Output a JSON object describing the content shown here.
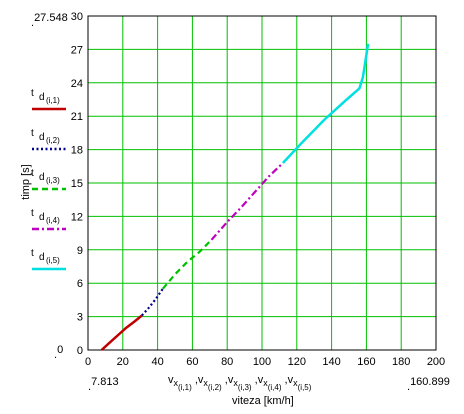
{
  "chart_data": {
    "type": "line",
    "xlabel": "viteza [km/h]",
    "ylabel": "timp [s]",
    "x_ticks": [
      "0",
      "20",
      "40",
      "60",
      "80",
      "100",
      "120",
      "140",
      "160",
      "180",
      "200"
    ],
    "y_ticks": [
      "0",
      "3",
      "6",
      "9",
      "12",
      "15",
      "18",
      "21",
      "24",
      "27",
      "30"
    ],
    "xlim": [
      0,
      200
    ],
    "ylim": [
      0,
      30
    ],
    "grid": true,
    "grid_color": "#00c000",
    "corner_labels": {
      "y_max": "27.548",
      "y_min": "0",
      "x_min": "7.813",
      "x_max": "160.899"
    },
    "x_series_label_parts": [
      {
        "base": "v",
        "sub1": "x",
        "sub2": "(i,1)",
        "sep": " ,"
      },
      {
        "base": "v",
        "sub1": "x",
        "sub2": "(i,2)",
        "sep": " ,"
      },
      {
        "base": "v",
        "sub1": "x",
        "sub2": "(i,3)",
        "sep": " ,"
      },
      {
        "base": "v",
        "sub1": "x",
        "sub2": "(i,4)",
        "sep": " ,"
      },
      {
        "base": "v",
        "sub1": "x",
        "sub2": "(i,5)",
        "sep": ""
      }
    ],
    "legend_placement": "left",
    "series": [
      {
        "name": "t d(i,1)",
        "legend_base": "t",
        "legend_sub1": "d",
        "legend_sub2": "(i,1)",
        "color": "#c00000",
        "dash": "solid",
        "x": [
          7.8,
          12,
          17,
          22,
          27,
          31
        ],
        "y": [
          0,
          0.6,
          1.3,
          2.0,
          2.6,
          3.1
        ]
      },
      {
        "name": "t d(i,2)",
        "legend_base": "t",
        "legend_sub1": "d",
        "legend_sub2": "(i,2)",
        "color": "#000090",
        "dash": "dot",
        "x": [
          31,
          35,
          39,
          43
        ],
        "y": [
          3.1,
          3.8,
          4.6,
          5.5
        ]
      },
      {
        "name": "t d(i,3)",
        "legend_base": "t",
        "legend_sub1": "d",
        "legend_sub2": "(i,3)",
        "color": "#00c000",
        "dash": "dash",
        "x": [
          43,
          50,
          57,
          64,
          71
        ],
        "y": [
          5.5,
          6.8,
          7.9,
          8.8,
          9.9
        ]
      },
      {
        "name": "t d(i,4)",
        "legend_base": "t",
        "legend_sub1": "d",
        "legend_sub2": "(i,4)",
        "color": "#c000c0",
        "dash": "dashdot",
        "x": [
          71,
          80,
          88,
          96,
          104,
          112
        ],
        "y": [
          9.9,
          11.5,
          12.8,
          14.2,
          15.6,
          16.8
        ]
      },
      {
        "name": "t d(i,5)",
        "legend_base": "t",
        "legend_sub1": "d",
        "legend_sub2": "(i,5)",
        "color": "#00e0e0",
        "dash": "solid",
        "x": [
          112,
          124,
          136,
          148,
          156,
          158,
          161
        ],
        "y": [
          16.8,
          18.8,
          20.7,
          22.4,
          23.5,
          24.5,
          27.5
        ]
      }
    ]
  }
}
